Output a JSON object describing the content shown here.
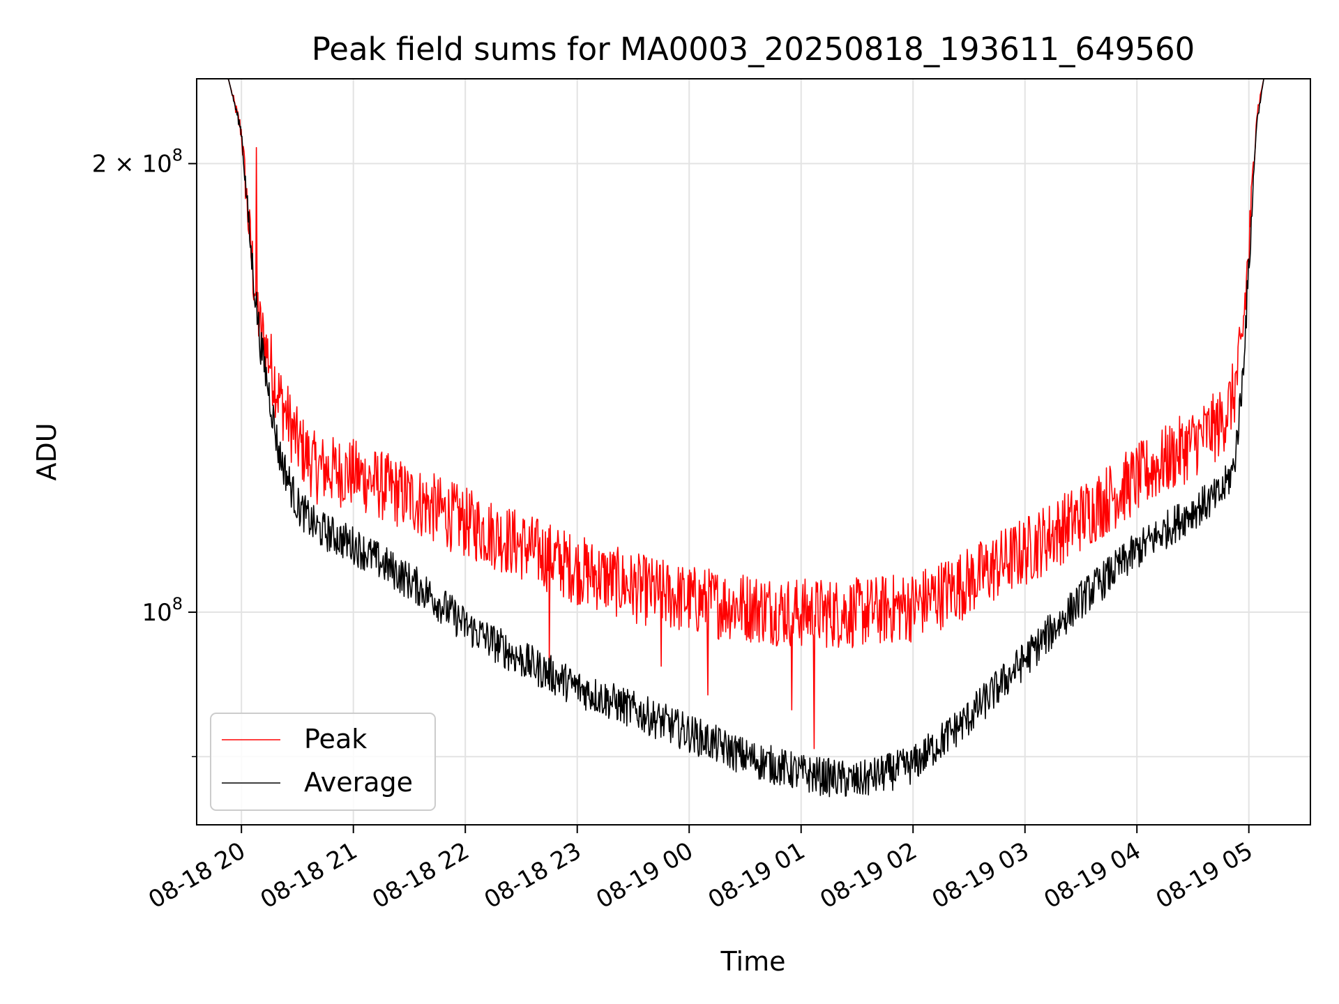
{
  "chart_data": {
    "type": "line",
    "title": "Peak field sums for MA0003_20250818_193611_649560",
    "xlabel": "Time",
    "ylabel": "ADU",
    "yscale": "log",
    "xlim": [
      "2025-08-18T19:36",
      "2025-08-19T05:33"
    ],
    "ylim": [
      72000000,
      228000000
    ],
    "grid": true,
    "legend_position": "lower-left",
    "x_ticks": [
      "08-18 20",
      "08-18 21",
      "08-18 22",
      "08-18 23",
      "08-19 00",
      "08-19 01",
      "08-19 02",
      "08-19 03",
      "08-19 04",
      "08-19 05"
    ],
    "x_tick_times": [
      "2025-08-18T20:00",
      "2025-08-18T21:00",
      "2025-08-18T22:00",
      "2025-08-18T23:00",
      "2025-08-19T00:00",
      "2025-08-19T01:00",
      "2025-08-19T02:00",
      "2025-08-19T03:00",
      "2025-08-19T04:00",
      "2025-08-19T05:00"
    ],
    "y_ticks": [
      {
        "value": 200000000,
        "mantissa": "2 × 10",
        "exponent": "8"
      },
      {
        "value": 100000000,
        "mantissa": "10",
        "exponent": "8"
      }
    ],
    "y_minor_ticks": [
      80000000
    ],
    "series": [
      {
        "name": "Peak",
        "color": "#ff0000",
        "x": [
          "2025-08-18T19:36",
          "2025-08-18T19:53",
          "2025-08-18T20:00",
          "2025-08-18T20:05",
          "2025-08-18T20:10",
          "2025-08-18T20:15",
          "2025-08-18T20:20",
          "2025-08-18T20:30",
          "2025-08-18T20:40",
          "2025-08-18T21:00",
          "2025-08-18T21:20",
          "2025-08-18T21:40",
          "2025-08-18T22:00",
          "2025-08-18T22:30",
          "2025-08-18T23:00",
          "2025-08-18T23:30",
          "2025-08-19T00:00",
          "2025-08-19T00:30",
          "2025-08-19T01:00",
          "2025-08-19T01:30",
          "2025-08-19T02:00",
          "2025-08-19T02:30",
          "2025-08-19T03:00",
          "2025-08-19T03:30",
          "2025-08-19T04:00",
          "2025-08-19T04:30",
          "2025-08-19T04:45",
          "2025-08-19T04:52",
          "2025-08-19T04:56",
          "2025-08-19T05:00",
          "2025-08-19T05:04",
          "2025-08-19T05:08",
          "2025-08-19T05:33"
        ],
        "values": [
          228000000,
          228000000,
          210000000,
          175000000,
          155000000,
          148000000,
          140000000,
          130000000,
          125000000,
          124000000,
          121000000,
          118000000,
          115000000,
          111000000,
          107000000,
          104000000,
          102000000,
          101000000,
          100000000,
          100000000,
          101000000,
          105000000,
          110000000,
          116000000,
          123000000,
          130000000,
          134000000,
          140000000,
          150000000,
          175000000,
          215000000,
          228000000,
          228000000
        ],
        "spikes": [
          {
            "x": "2025-08-18T20:08",
            "value": 205000000
          },
          {
            "x": "2025-08-18T22:45",
            "value": 92000000
          },
          {
            "x": "2025-08-18T23:45",
            "value": 92000000
          },
          {
            "x": "2025-08-19T00:10",
            "value": 88000000
          },
          {
            "x": "2025-08-19T00:55",
            "value": 86000000
          },
          {
            "x": "2025-08-19T01:07",
            "value": 81000000
          }
        ]
      },
      {
        "name": "Average",
        "color": "#000000",
        "x": [
          "2025-08-18T19:36",
          "2025-08-18T19:53",
          "2025-08-18T20:00",
          "2025-08-18T20:05",
          "2025-08-18T20:10",
          "2025-08-18T20:15",
          "2025-08-18T20:20",
          "2025-08-18T20:30",
          "2025-08-18T20:40",
          "2025-08-18T21:00",
          "2025-08-18T21:20",
          "2025-08-18T21:40",
          "2025-08-18T22:00",
          "2025-08-18T22:30",
          "2025-08-18T23:00",
          "2025-08-18T23:30",
          "2025-08-19T00:00",
          "2025-08-19T00:30",
          "2025-08-19T01:00",
          "2025-08-19T01:30",
          "2025-08-19T02:00",
          "2025-08-19T02:30",
          "2025-08-19T03:00",
          "2025-08-19T03:30",
          "2025-08-19T04:00",
          "2025-08-19T04:30",
          "2025-08-19T04:45",
          "2025-08-19T04:52",
          "2025-08-19T04:56",
          "2025-08-19T05:00",
          "2025-08-19T05:04",
          "2025-08-19T05:08",
          "2025-08-19T05:33"
        ],
        "values": [
          228000000,
          228000000,
          210000000,
          175000000,
          152000000,
          140000000,
          128000000,
          118000000,
          114000000,
          111000000,
          107000000,
          103000000,
          98000000,
          93000000,
          89000000,
          86000000,
          83000000,
          80000000,
          78000000,
          77000000,
          79000000,
          85000000,
          93000000,
          102000000,
          110000000,
          117000000,
          120000000,
          125000000,
          140000000,
          170000000,
          212000000,
          228000000,
          228000000
        ]
      }
    ]
  }
}
